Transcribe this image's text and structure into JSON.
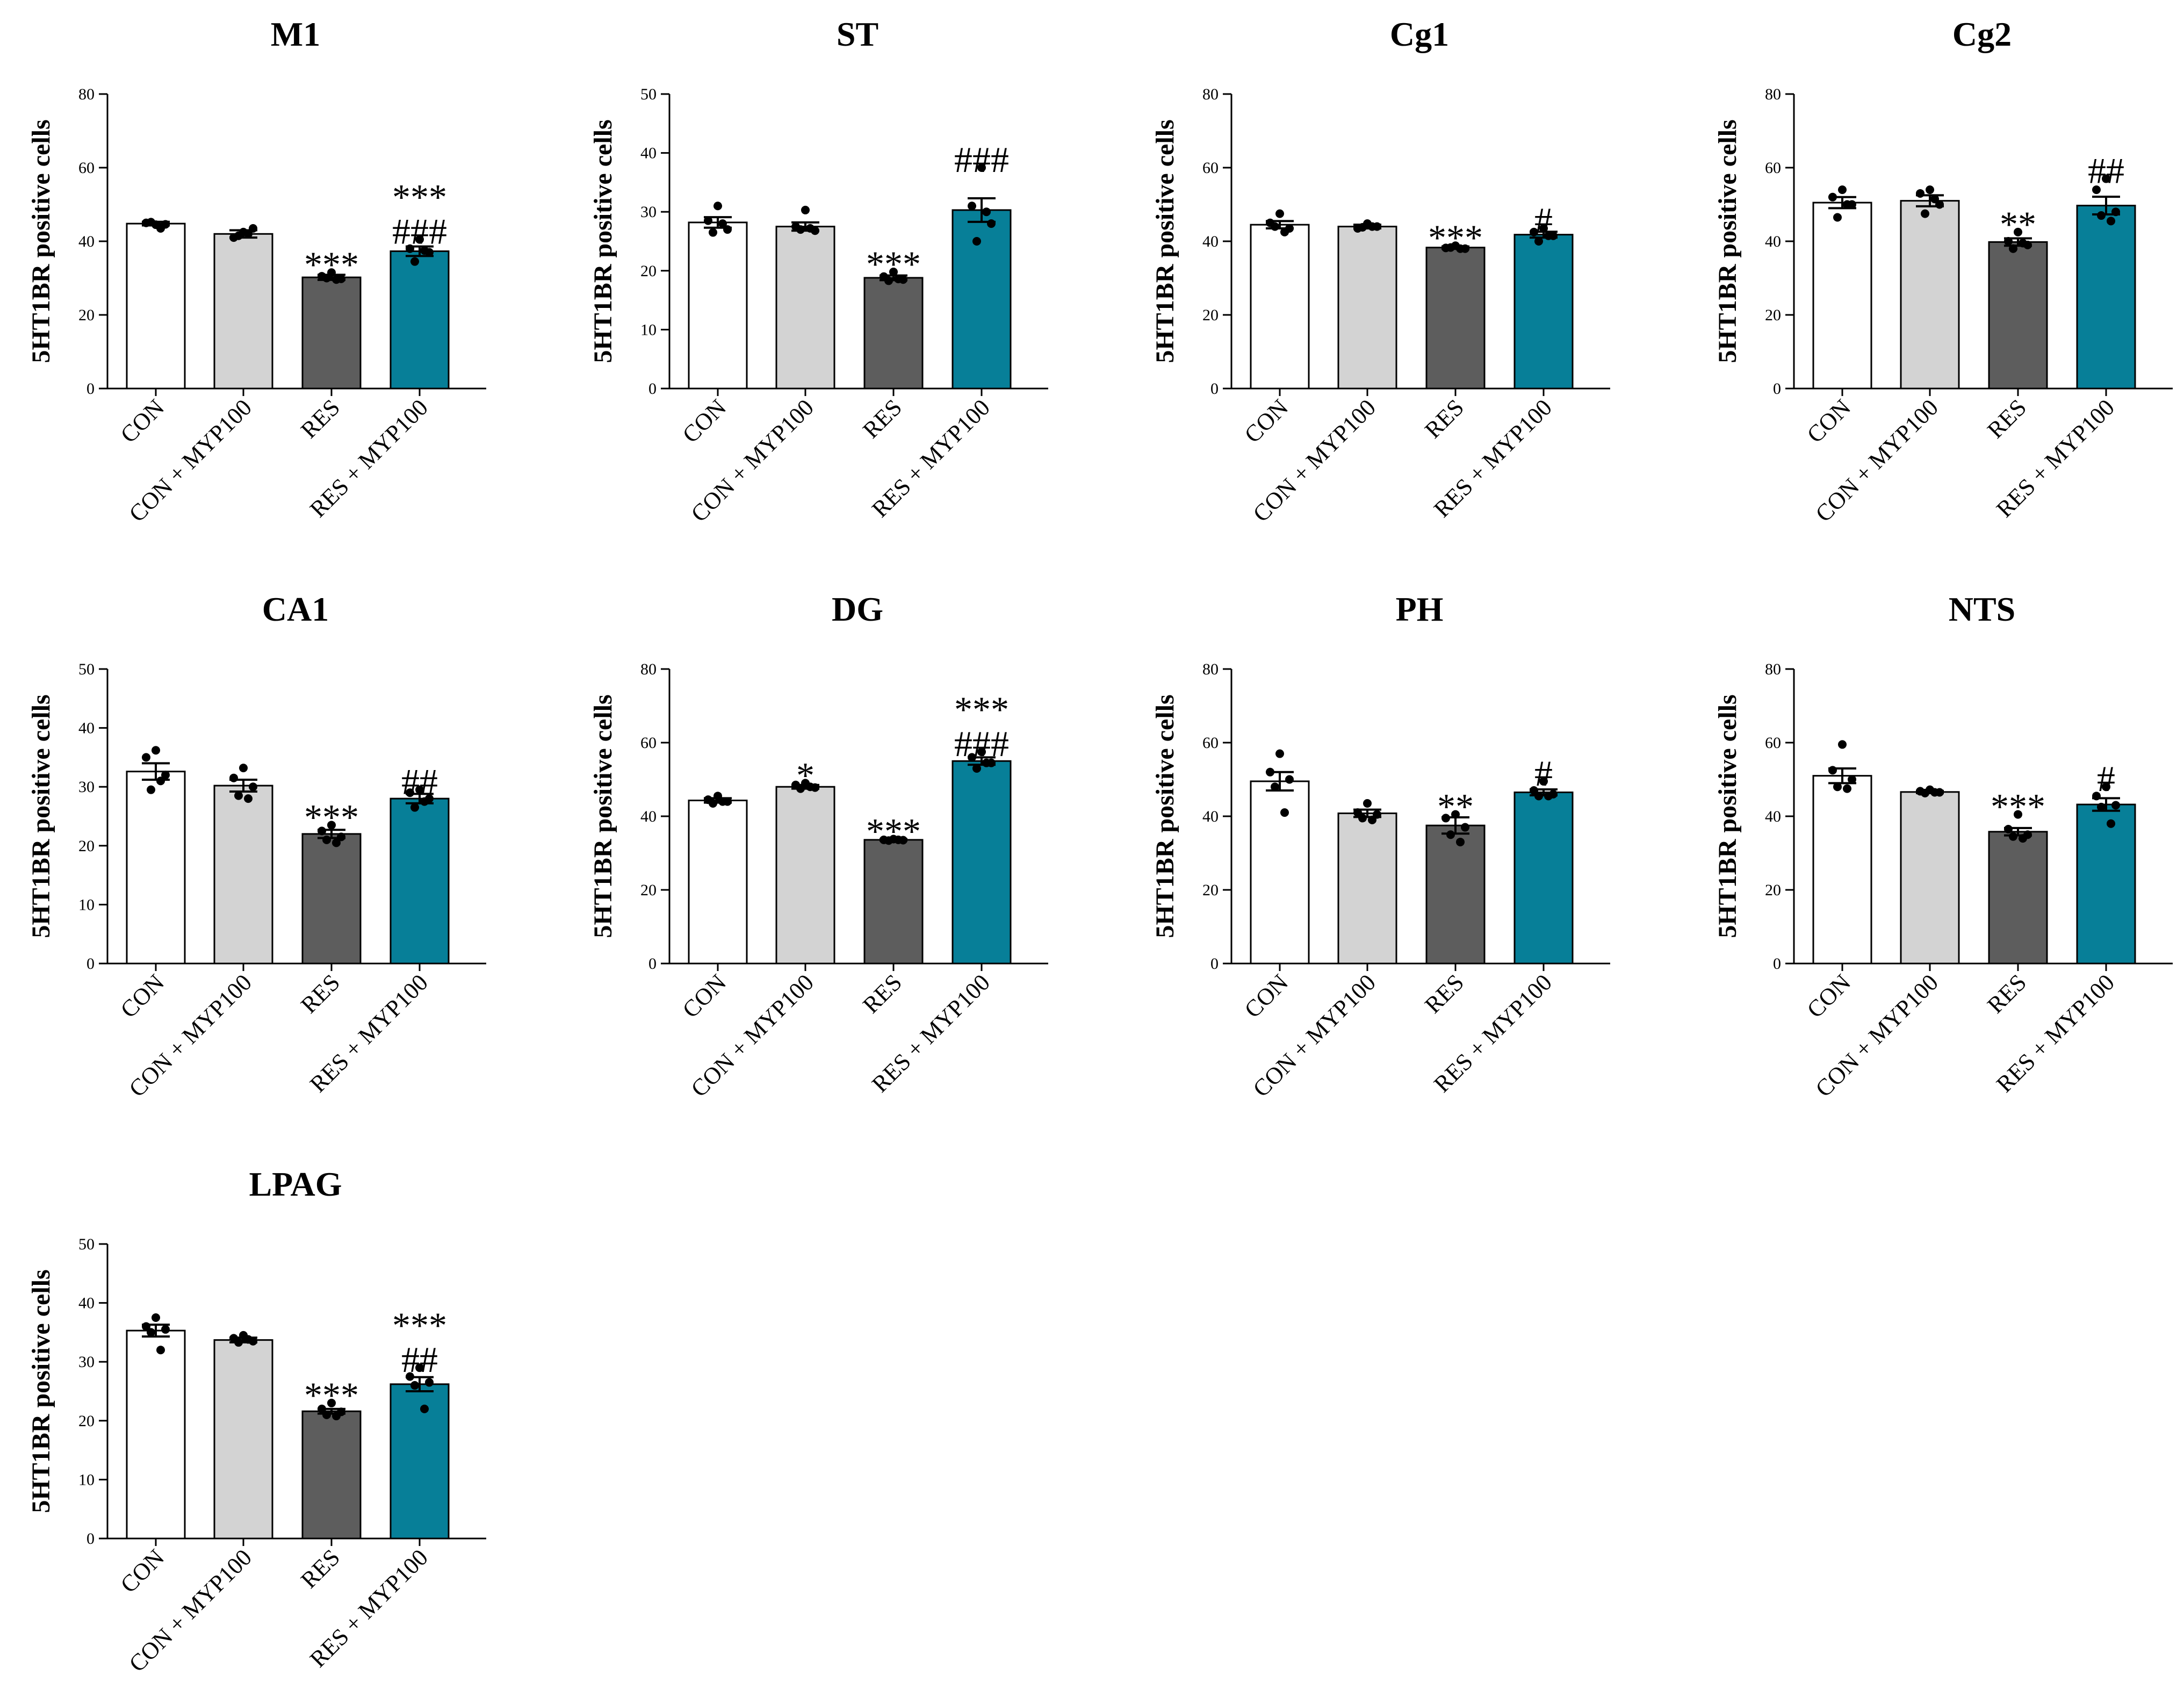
{
  "chart_data": [
    {
      "type": "bar",
      "title": "M1",
      "ylabel": "5HT1BR positive cells",
      "xlabel": "",
      "ylim": [
        0,
        80
      ],
      "yticks": [
        0,
        20,
        40,
        60,
        80
      ],
      "categories": [
        "CON",
        "CON + MYP100",
        "RES",
        "RES + MYP100"
      ],
      "values": [
        44.8,
        42.0,
        30.2,
        37.3
      ],
      "sem": [
        0.5,
        1.0,
        0.7,
        1.3
      ],
      "points": [
        [
          44.5,
          45.0,
          44.6,
          45.2,
          43.5
        ],
        [
          42.5,
          41.0,
          43.5,
          41.5,
          42.0
        ],
        [
          31.5,
          30.5,
          29.8,
          30.0,
          29.6
        ],
        [
          40.5,
          38.0,
          37.0,
          34.5,
          37.5
        ]
      ],
      "annotations": [
        "",
        "",
        "***",
        "***\n###"
      ]
    },
    {
      "type": "bar",
      "title": "ST",
      "ylabel": "5HT1BR positive cells",
      "xlabel": "",
      "ylim": [
        0,
        50
      ],
      "yticks": [
        0,
        10,
        20,
        30,
        40,
        50
      ],
      "categories": [
        "CON",
        "CON + MYP100",
        "RES",
        "RES + MYP100"
      ],
      "values": [
        28.2,
        27.5,
        18.8,
        30.3
      ],
      "sem": [
        0.9,
        0.7,
        0.4,
        2.0
      ],
      "points": [
        [
          31.0,
          28.5,
          27.0,
          26.5,
          28.0
        ],
        [
          30.3,
          27.5,
          26.8,
          27.0,
          27.2
        ],
        [
          19.8,
          19.0,
          18.5,
          18.3,
          18.6
        ],
        [
          37.5,
          31.0,
          28.0,
          25.0,
          30.0
        ]
      ],
      "annotations": [
        "",
        "",
        "***",
        "###"
      ]
    },
    {
      "type": "bar",
      "title": "Cg1",
      "ylabel": "5HT1BR positive cells",
      "xlabel": "",
      "ylim": [
        0,
        80
      ],
      "yticks": [
        0,
        20,
        40,
        60,
        80
      ],
      "categories": [
        "CON",
        "CON + MYP100",
        "RES",
        "RES + MYP100"
      ],
      "values": [
        44.5,
        44.0,
        38.3,
        41.8
      ],
      "sem": [
        1.0,
        0.5,
        0.3,
        0.8
      ],
      "points": [
        [
          47.5,
          45.0,
          43.5,
          44.0,
          42.5
        ],
        [
          44.8,
          43.5,
          44.0,
          43.8,
          44.0
        ],
        [
          38.8,
          38.2,
          38.0,
          38.3,
          38.0
        ],
        [
          43.5,
          42.5,
          41.5,
          40.0,
          41.5
        ]
      ],
      "annotations": [
        "",
        "",
        "***",
        "#"
      ]
    },
    {
      "type": "bar",
      "title": "Cg2",
      "ylabel": "5HT1BR positive cells",
      "xlabel": "",
      "ylim": [
        0,
        80
      ],
      "yticks": [
        0,
        20,
        40,
        60,
        80
      ],
      "categories": [
        "CON",
        "CON + MYP100",
        "RES",
        "RES + MYP100"
      ],
      "values": [
        50.5,
        51.0,
        39.8,
        49.7
      ],
      "sem": [
        1.5,
        1.5,
        1.0,
        2.4
      ],
      "points": [
        [
          54.0,
          52.0,
          50.0,
          46.5,
          50.0
        ],
        [
          54.0,
          53.0,
          50.0,
          47.5,
          51.5
        ],
        [
          42.5,
          40.0,
          39.0,
          38.0,
          39.5
        ],
        [
          57.0,
          54.0,
          48.0,
          47.0,
          45.5
        ]
      ],
      "annotations": [
        "",
        "",
        "**",
        "##"
      ]
    },
    {
      "type": "bar",
      "title": "CA1",
      "ylabel": "5HT1BR positive cells",
      "xlabel": "",
      "ylim": [
        0,
        50
      ],
      "yticks": [
        0,
        10,
        20,
        30,
        40,
        50
      ],
      "categories": [
        "CON",
        "CON + MYP100",
        "RES",
        "RES + MYP100"
      ],
      "values": [
        32.6,
        30.2,
        22.0,
        28.0
      ],
      "sem": [
        1.4,
        1.0,
        0.7,
        0.8
      ],
      "points": [
        [
          36.2,
          35.0,
          32.0,
          29.5,
          31.0
        ],
        [
          33.2,
          31.5,
          30.0,
          28.5,
          28.0
        ],
        [
          23.5,
          22.5,
          21.5,
          21.0,
          20.5
        ],
        [
          29.5,
          29.0,
          28.0,
          26.5,
          27.5
        ]
      ],
      "annotations": [
        "",
        "",
        "***",
        "##"
      ]
    },
    {
      "type": "bar",
      "title": "DG",
      "ylabel": "5HT1BR positive cells",
      "xlabel": "",
      "ylim": [
        0,
        80
      ],
      "yticks": [
        0,
        20,
        40,
        60,
        80
      ],
      "categories": [
        "CON",
        "CON + MYP100",
        "RES",
        "RES + MYP100"
      ],
      "values": [
        44.3,
        48.0,
        33.6,
        55.0
      ],
      "sem": [
        0.6,
        0.5,
        0.2,
        1.0
      ],
      "points": [
        [
          45.5,
          44.5,
          44.0,
          43.5,
          44.0
        ],
        [
          49.0,
          48.5,
          47.8,
          47.5,
          48.0
        ],
        [
          33.8,
          33.6,
          33.5,
          33.4,
          33.6
        ],
        [
          57.5,
          56.0,
          54.5,
          53.0,
          54.5
        ]
      ],
      "annotations": [
        "",
        "*",
        "***",
        "***\n###"
      ]
    },
    {
      "type": "bar",
      "title": "PH",
      "ylabel": "5HT1BR positive cells",
      "xlabel": "",
      "ylim": [
        0,
        80
      ],
      "yticks": [
        0,
        20,
        40,
        60,
        80
      ],
      "categories": [
        "CON",
        "CON + MYP100",
        "RES",
        "RES + MYP100"
      ],
      "values": [
        49.5,
        40.8,
        37.5,
        46.5
      ],
      "sem": [
        2.5,
        1.0,
        2.2,
        0.8
      ],
      "points": [
        [
          57.0,
          52.0,
          50.0,
          48.0,
          41.0
        ],
        [
          43.5,
          41.0,
          40.5,
          39.5,
          39.0
        ],
        [
          40.5,
          39.5,
          37.0,
          35.0,
          33.0
        ],
        [
          49.5,
          47.0,
          46.0,
          45.5,
          45.5
        ]
      ],
      "annotations": [
        "",
        "",
        "**",
        "#"
      ]
    },
    {
      "type": "bar",
      "title": "NTS",
      "ylabel": "5HT1BR positive cells",
      "xlabel": "",
      "ylim": [
        0,
        80
      ],
      "yticks": [
        0,
        20,
        40,
        60,
        80
      ],
      "categories": [
        "CON",
        "CON + MYP100",
        "RES",
        "RES + MYP100"
      ],
      "values": [
        51.0,
        46.6,
        35.8,
        43.2
      ],
      "sem": [
        2.0,
        0.3,
        1.0,
        1.7
      ],
      "points": [
        [
          59.5,
          52.5,
          50.0,
          48.0,
          47.5
        ],
        [
          47.2,
          46.8,
          46.5,
          46.3,
          46.5
        ],
        [
          40.5,
          36.5,
          35.0,
          34.5,
          34.0
        ],
        [
          48.0,
          45.5,
          43.0,
          42.5,
          38.0
        ]
      ],
      "annotations": [
        "",
        "",
        "***",
        "#"
      ]
    },
    {
      "type": "bar",
      "title": "LPAG",
      "ylabel": "5HT1BR positive cells",
      "xlabel": "",
      "ylim": [
        0,
        50
      ],
      "yticks": [
        0,
        10,
        20,
        30,
        40,
        50
      ],
      "categories": [
        "CON",
        "CON + MYP100",
        "RES",
        "RES + MYP100"
      ],
      "values": [
        35.3,
        33.7,
        21.6,
        26.2
      ],
      "sem": [
        1.0,
        0.4,
        0.4,
        1.2
      ],
      "points": [
        [
          37.5,
          36.0,
          35.5,
          35.0,
          32.0
        ],
        [
          34.5,
          34.0,
          33.5,
          33.3,
          33.8
        ],
        [
          23.0,
          22.0,
          21.5,
          21.0,
          20.8
        ],
        [
          29.0,
          27.5,
          26.5,
          26.0,
          22.0
        ]
      ],
      "annotations": [
        "",
        "",
        "***",
        "***\n##"
      ]
    }
  ],
  "colors": {
    "bars": [
      "#ffffff",
      "#d3d3d3",
      "#5d5d5d",
      "#077f98"
    ],
    "axis": "#000000",
    "points": "#000000"
  }
}
